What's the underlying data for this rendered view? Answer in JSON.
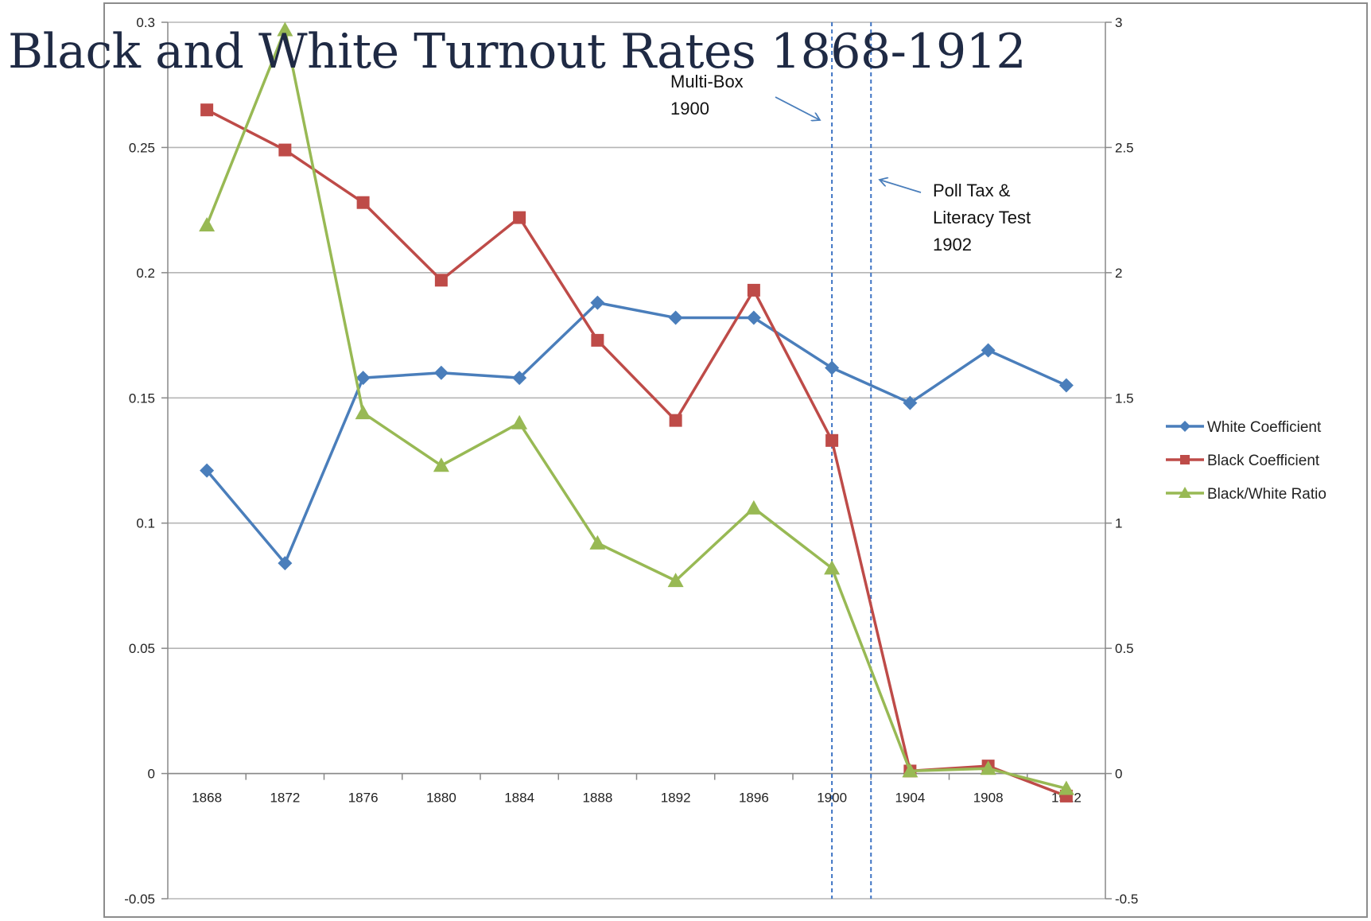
{
  "chart_data": {
    "type": "line",
    "title": "Black and White Turnout Rates 1868-1912",
    "categories": [
      "1868",
      "1872",
      "1876",
      "1880",
      "1884",
      "1888",
      "1892",
      "1896",
      "1900",
      "1904",
      "1908",
      "1912"
    ],
    "y_left": {
      "ylim": [
        -0.05,
        0.3
      ],
      "ticks": [
        "-0.05",
        "0",
        "0.05",
        "0.1",
        "0.15",
        "0.2",
        "0.25",
        "0.3"
      ]
    },
    "y_right": {
      "ylim": [
        -0.5,
        3
      ],
      "ticks": [
        "-0.5",
        "0",
        "0.5",
        "1",
        "1.5",
        "2",
        "2.5",
        "3"
      ]
    },
    "grid": true,
    "legend_position": "right",
    "series": [
      {
        "name": "White Coefficient",
        "axis": "left",
        "color": "#4a7ebb",
        "marker": "diamond",
        "values": [
          0.121,
          0.084,
          0.158,
          0.16,
          0.158,
          0.188,
          0.182,
          0.182,
          0.162,
          0.148,
          0.169,
          0.155
        ]
      },
      {
        "name": "Black Coefficient",
        "axis": "left",
        "color": "#be4b48",
        "marker": "square",
        "values": [
          0.265,
          0.249,
          0.228,
          0.197,
          0.222,
          0.173,
          0.141,
          0.193,
          0.133,
          0.001,
          0.003,
          -0.009
        ]
      },
      {
        "name": "Black/White  Ratio",
        "axis": "right",
        "color": "#98b954",
        "marker": "triangle",
        "values": [
          2.19,
          2.97,
          1.44,
          1.23,
          1.4,
          0.92,
          0.77,
          1.06,
          0.82,
          0.01,
          0.02,
          -0.06
        ]
      }
    ],
    "annotations": [
      {
        "id": "multi-box",
        "lines": [
          "Multi-Box",
          "1900"
        ],
        "marks_year": 1900
      },
      {
        "id": "poll-tax",
        "lines": [
          "Poll Tax &",
          "Literacy Test",
          "1902"
        ],
        "marks_year": 1902
      }
    ]
  }
}
